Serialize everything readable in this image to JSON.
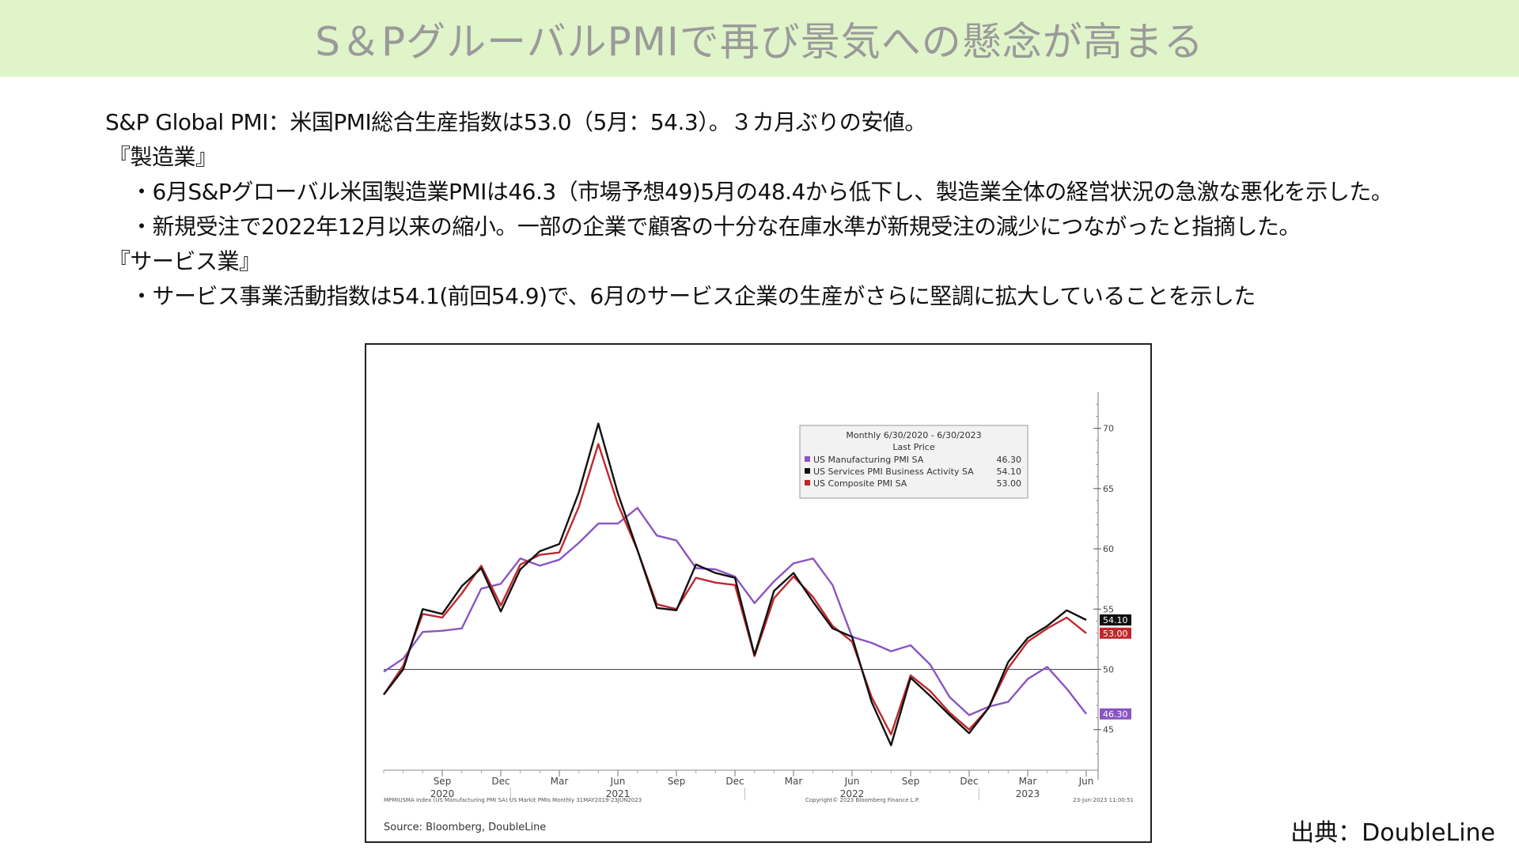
{
  "banner": {
    "title": "S＆PグルーバルPMIで再び景気への懸念が高まる"
  },
  "summary": {
    "line1": "S&P Global PMI：米国PMI総合生産指数は53.0（5月：54.3）。３カ月ぶりの安値。",
    "mfg_heading": "『製造業』",
    "mfg_bullet1": "・6月S&Pグローバル米国製造業PMIは46.3（市場予想49)5月の48.4から低下し、製造業全体の経営状況の急激な悪化を示した。",
    "mfg_bullet2": "・新規受注で2022年12月以来の縮小。一部の企業で顧客の十分な在庫水準が新規受注の減少につながったと指摘した。",
    "svc_heading": "『サービス業』",
    "svc_bullet1": "・サービス事業活動指数は54.1(前回54.9)で、6月のサービス企業の生産がさらに堅調に拡大していることを示した"
  },
  "credit": "出典：DoubleLine",
  "chart_data": {
    "type": "line",
    "legend": {
      "title1": "Monthly 6/30/2020 - 6/30/2023",
      "title2": "Last Price",
      "position": "top-right"
    },
    "x": [
      "2020-06",
      "2020-07",
      "2020-08",
      "2020-09",
      "2020-10",
      "2020-11",
      "2020-12",
      "2021-01",
      "2021-02",
      "2021-03",
      "2021-04",
      "2021-05",
      "2021-06",
      "2021-07",
      "2021-08",
      "2021-09",
      "2021-10",
      "2021-11",
      "2021-12",
      "2022-01",
      "2022-02",
      "2022-03",
      "2022-04",
      "2022-05",
      "2022-06",
      "2022-07",
      "2022-08",
      "2022-09",
      "2022-10",
      "2022-11",
      "2022-12",
      "2023-01",
      "2023-02",
      "2023-03",
      "2023-04",
      "2023-05",
      "2023-06"
    ],
    "x_tick_labels": [
      {
        "month": "2020-09",
        "label": "Sep",
        "year": "2020"
      },
      {
        "month": "2020-12",
        "label": "Dec",
        "year": ""
      },
      {
        "month": "2021-03",
        "label": "Mar",
        "year": ""
      },
      {
        "month": "2021-06",
        "label": "Jun",
        "year": "2021"
      },
      {
        "month": "2021-09",
        "label": "Sep",
        "year": ""
      },
      {
        "month": "2021-12",
        "label": "Dec",
        "year": ""
      },
      {
        "month": "2022-03",
        "label": "Mar",
        "year": ""
      },
      {
        "month": "2022-06",
        "label": "Jun",
        "year": "2022"
      },
      {
        "month": "2022-09",
        "label": "Sep",
        "year": ""
      },
      {
        "month": "2022-12",
        "label": "Dec",
        "year": ""
      },
      {
        "month": "2023-03",
        "label": "Mar",
        "year": "2023"
      },
      {
        "month": "2023-06",
        "label": "Jun",
        "year": ""
      }
    ],
    "y_ticks": [
      45,
      50,
      55,
      60,
      65,
      70
    ],
    "ylim": [
      41.5,
      73
    ],
    "reference_line": 50,
    "series": [
      {
        "name": "US Manufacturing PMI SA",
        "last_price": "46.30",
        "color": "#8a55c2",
        "values": [
          49.8,
          50.9,
          53.1,
          53.2,
          53.4,
          56.7,
          57.1,
          59.2,
          58.6,
          59.1,
          60.5,
          62.1,
          62.1,
          63.4,
          61.1,
          60.7,
          58.4,
          58.3,
          57.7,
          55.5,
          57.3,
          58.8,
          59.2,
          57.0,
          52.7,
          52.2,
          51.5,
          52.0,
          50.4,
          47.7,
          46.2,
          46.9,
          47.3,
          49.2,
          50.2,
          48.4,
          46.3
        ]
      },
      {
        "name": "US Services PMI Business Activity SA",
        "last_price": "54.10",
        "color": "#111111",
        "values": [
          47.9,
          50.0,
          55.0,
          54.6,
          56.9,
          58.4,
          54.8,
          58.3,
          59.8,
          60.4,
          64.7,
          70.4,
          64.6,
          59.9,
          55.1,
          54.9,
          58.7,
          58.0,
          57.6,
          51.2,
          56.5,
          58.0,
          55.6,
          53.4,
          52.7,
          47.3,
          43.7,
          49.3,
          47.8,
          46.2,
          44.7,
          46.8,
          50.6,
          52.6,
          53.6,
          54.9,
          54.1
        ]
      },
      {
        "name": "US Composite PMI SA",
        "last_price": "53.00",
        "color": "#c0272d",
        "values": [
          47.9,
          50.3,
          54.6,
          54.3,
          56.3,
          58.6,
          55.3,
          58.7,
          59.5,
          59.7,
          63.5,
          68.7,
          63.7,
          59.9,
          55.4,
          55.0,
          57.6,
          57.2,
          57.0,
          51.1,
          55.9,
          57.7,
          56.0,
          53.6,
          52.3,
          47.7,
          44.6,
          49.5,
          48.2,
          46.4,
          45.0,
          46.8,
          50.1,
          52.3,
          53.4,
          54.3,
          53.0
        ]
      }
    ],
    "source": "Source: Bloomberg, DoubleLine",
    "footer_left": "MPMIUSMA Index (US Manufacturing PMI SA) US Markit PMIs  Monthly 31MAY2019-23JUN2023",
    "footer_mid": "Copyright© 2023 Bloomberg Finance L.P.",
    "footer_right": "23-Jun-2023 11:00:51"
  }
}
